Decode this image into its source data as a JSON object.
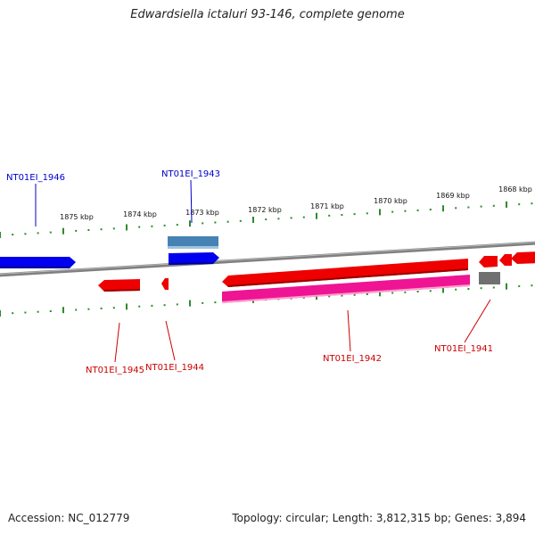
{
  "title": "Edwardsiella ictaluri 93-146, complete genome",
  "footer": {
    "accession": "Accession: NC_012779",
    "topology": "Topology: circular; Length: 3,812,315 bp; Genes: 3,894"
  },
  "colors": {
    "backbone": "#808080",
    "tick": "#2e8b2e",
    "forward_cds": "#0000ee",
    "forward_gene": "#4682b4",
    "reverse_cds": "#ee0000",
    "reverse_feature": "#ee1493",
    "other": "#707070",
    "forward_label": "#0000cc",
    "reverse_label": "#cc0000"
  },
  "scale": {
    "unit": "kbp",
    "ticks": [
      {
        "kbp": 1875,
        "label": "1875 kbp"
      },
      {
        "kbp": 1874,
        "label": "1874 kbp"
      },
      {
        "kbp": 1873,
        "label": "1873 kbp"
      },
      {
        "kbp": 1872,
        "label": "1872 kbp"
      },
      {
        "kbp": 1871,
        "label": "1871 kbp"
      },
      {
        "kbp": 1870,
        "label": "1870 kbp"
      },
      {
        "kbp": 1869,
        "label": "1869 kbp"
      },
      {
        "kbp": 1868,
        "label": "1868 kbp"
      }
    ]
  },
  "features": [
    {
      "label": "NT01EI_1946",
      "strand": "forward",
      "type": "cds"
    },
    {
      "label": "NT01EI_1943",
      "strand": "forward",
      "type": "cds"
    },
    {
      "label": "NT01EI_1945",
      "strand": "reverse",
      "type": "cds"
    },
    {
      "label": "NT01EI_1944",
      "strand": "reverse",
      "type": "cds"
    },
    {
      "label": "NT01EI_1942",
      "strand": "reverse",
      "type": "cds"
    },
    {
      "label": "NT01EI_1941",
      "strand": "reverse",
      "type": "cds"
    }
  ]
}
